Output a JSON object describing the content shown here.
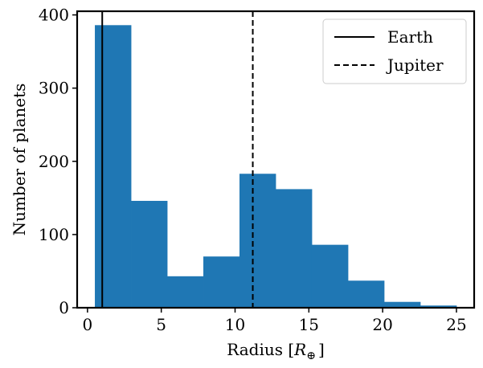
{
  "chart_data": {
    "type": "bar",
    "subtype": "histogram",
    "bins": [
      {
        "start": 0.5,
        "end": 2.95,
        "count": 386
      },
      {
        "start": 2.95,
        "end": 5.4,
        "count": 146
      },
      {
        "start": 5.4,
        "end": 7.85,
        "count": 43
      },
      {
        "start": 7.85,
        "end": 10.3,
        "count": 70
      },
      {
        "start": 10.3,
        "end": 12.75,
        "count": 183
      },
      {
        "start": 12.75,
        "end": 15.2,
        "count": 162
      },
      {
        "start": 15.2,
        "end": 17.65,
        "count": 86
      },
      {
        "start": 17.65,
        "end": 20.1,
        "count": 37
      },
      {
        "start": 20.1,
        "end": 22.55,
        "count": 8
      },
      {
        "start": 22.55,
        "end": 25.0,
        "count": 3
      }
    ],
    "bar_color": "#1f77b4",
    "reference_lines": [
      {
        "name": "Earth",
        "x": 1.0,
        "style": "solid",
        "color": "#000000"
      },
      {
        "name": "Jupiter",
        "x": 11.2,
        "style": "dashed",
        "color": "#000000"
      }
    ],
    "xlabel_main": "Radius [",
    "xlabel_symbol": "R",
    "xlabel_subscript": "⊕",
    "xlabel_close": "]",
    "ylabel": "Number of planets",
    "xlim": [
      -0.7,
      26.2
    ],
    "ylim": [
      0,
      405
    ],
    "xticks": [
      0,
      5,
      10,
      15,
      20,
      25
    ],
    "xtick_labels": [
      "0",
      "5",
      "10",
      "15",
      "20",
      "25"
    ],
    "yticks": [
      0,
      100,
      200,
      300,
      400
    ],
    "ytick_labels": [
      "0",
      "100",
      "200",
      "300",
      "400"
    ],
    "legend_position": "top-right",
    "grid": false
  }
}
